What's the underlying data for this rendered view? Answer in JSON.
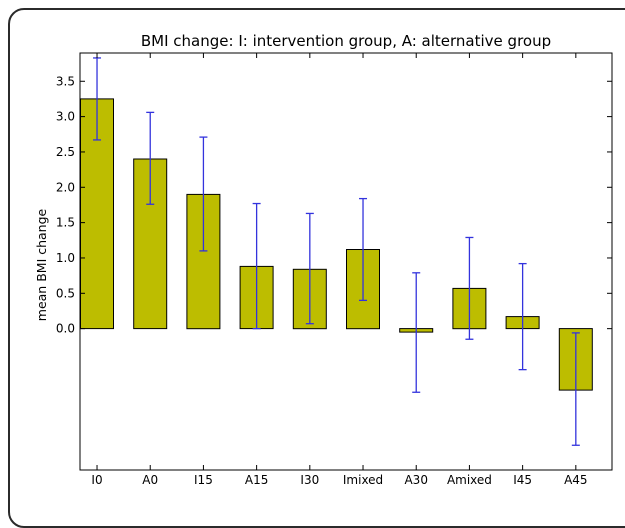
{
  "chart_data": {
    "type": "bar",
    "title": "BMI change: I: intervention group, A: alternative group",
    "xlabel": "",
    "ylabel": "mean BMI change",
    "categories": [
      "I0",
      "A0",
      "I15",
      "A15",
      "I30",
      "Imixed",
      "A30",
      "Amixed",
      "I45",
      "A45"
    ],
    "values": [
      3.25,
      2.4,
      1.9,
      0.88,
      0.84,
      1.12,
      -0.05,
      0.57,
      0.17,
      -0.87
    ],
    "error_low": [
      2.67,
      1.76,
      1.1,
      0.0,
      0.07,
      0.4,
      -0.9,
      -0.15,
      -0.58,
      -1.65
    ],
    "error_high": [
      3.83,
      3.06,
      2.71,
      1.77,
      1.63,
      1.84,
      0.79,
      1.29,
      0.92,
      -0.06
    ],
    "ytick_labels": [
      "0.0",
      "0.5",
      "1.0",
      "1.5",
      "2.0",
      "2.5",
      "3.0",
      "3.5"
    ],
    "ylim": [
      -2.0,
      3.9
    ],
    "bar_color": "#bdbd00",
    "error_color": "#3333dd",
    "grid": false,
    "legend": "none"
  }
}
